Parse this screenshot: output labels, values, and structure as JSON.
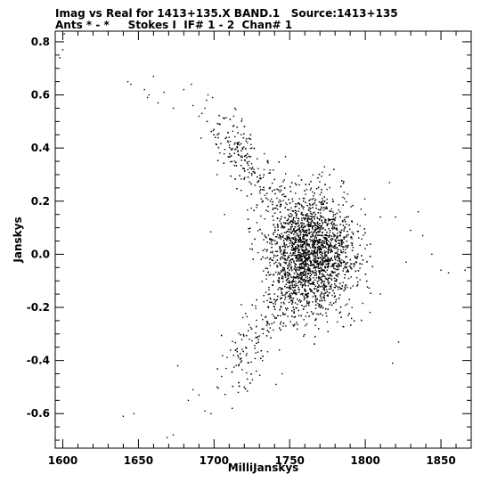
{
  "chart_data": {
    "type": "scatter",
    "title": "Imag vs Real for 1413+135.X BAND.1",
    "title_source": "Source:1413+135",
    "subtitle_ants": "Ants * - *",
    "subtitle_stokes": "Stokes I  IF# 1 - 2  Chan# 1",
    "xlabel": "MilliJanskys",
    "ylabel": "Janskys",
    "xlim": [
      1595,
      1870
    ],
    "ylim": [
      -0.73,
      0.84
    ],
    "x_ticks": [
      1600,
      1650,
      1700,
      1750,
      1800,
      1850
    ],
    "y_ticks": [
      -0.6,
      -0.4,
      -0.2,
      0.0,
      0.2,
      0.4,
      0.6,
      0.8
    ],
    "x_tick_labels": [
      "1600",
      "1650",
      "1700",
      "1750",
      "1800",
      "1850"
    ],
    "y_tick_labels": [
      "-0.6",
      "-0.4",
      "-0.2",
      "0.0",
      "0.2",
      "0.4",
      "0.6",
      "0.8"
    ],
    "grid": false,
    "marker_color": "#000000",
    "cluster": {
      "center_x": 1765,
      "center_y": 0.0,
      "std_x": 14,
      "std_y": 0.11,
      "count": 3500
    },
    "points": [
      [
        1598,
        0.74
      ],
      [
        1600,
        0.77
      ],
      [
        1601,
        0.83
      ],
      [
        1643,
        0.65
      ],
      [
        1645,
        0.64
      ],
      [
        1654,
        0.62
      ],
      [
        1656,
        0.59
      ],
      [
        1657,
        0.6
      ],
      [
        1660,
        0.67
      ],
      [
        1663,
        0.57
      ],
      [
        1667,
        0.61
      ],
      [
        1673,
        0.55
      ],
      [
        1680,
        0.62
      ],
      [
        1685,
        0.64
      ],
      [
        1686,
        0.56
      ],
      [
        1690,
        0.52
      ],
      [
        1692,
        0.53
      ],
      [
        1694,
        0.55
      ],
      [
        1695,
        0.58
      ],
      [
        1696,
        0.6
      ],
      [
        1699,
        0.59
      ],
      [
        1700,
        0.47
      ],
      [
        1704,
        0.49
      ],
      [
        1710,
        0.44
      ],
      [
        1713,
        0.52
      ],
      [
        1718,
        0.45
      ],
      [
        1722,
        0.42
      ],
      [
        1725,
        0.4
      ],
      [
        1702,
        0.3
      ],
      [
        1707,
        0.15
      ],
      [
        1640,
        -0.61
      ],
      [
        1647,
        -0.6
      ],
      [
        1669,
        -0.69
      ],
      [
        1673,
        -0.68
      ],
      [
        1676,
        -0.42
      ],
      [
        1683,
        -0.55
      ],
      [
        1686,
        -0.51
      ],
      [
        1690,
        -0.53
      ],
      [
        1694,
        -0.59
      ],
      [
        1698,
        -0.6
      ],
      [
        1702,
        -0.5
      ],
      [
        1705,
        -0.46
      ],
      [
        1708,
        -0.43
      ],
      [
        1712,
        -0.58
      ],
      [
        1716,
        -0.52
      ],
      [
        1720,
        -0.5
      ],
      [
        1718,
        -0.19
      ],
      [
        1722,
        -0.47
      ],
      [
        1728,
        -0.44
      ],
      [
        1732,
        -0.4
      ],
      [
        1741,
        -0.49
      ],
      [
        1745,
        -0.45
      ],
      [
        1810,
        0.14
      ],
      [
        1816,
        0.27
      ],
      [
        1820,
        0.14
      ],
      [
        1835,
        0.16
      ],
      [
        1844,
        0.0
      ],
      [
        1850,
        -0.06
      ],
      [
        1855,
        -0.07
      ],
      [
        1866,
        -0.06
      ],
      [
        1827,
        -0.03
      ],
      [
        1838,
        0.07
      ],
      [
        1818,
        -0.41
      ],
      [
        1822,
        -0.33
      ],
      [
        1810,
        -0.15
      ],
      [
        1830,
        0.09
      ]
    ]
  }
}
